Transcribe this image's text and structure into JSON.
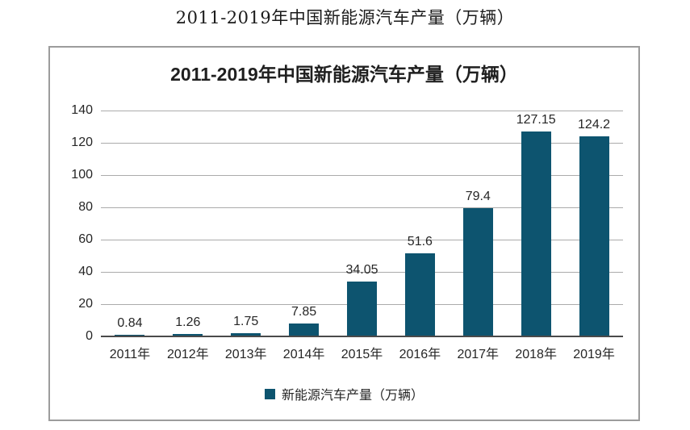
{
  "page_title": "2011-2019年中国新能源汽车产量（万辆）",
  "chart_data": {
    "type": "bar",
    "title": "2011-2019年中国新能源汽车产量（万辆）",
    "categories": [
      "2011年",
      "2012年",
      "2013年",
      "2014年",
      "2015年",
      "2016年",
      "2017年",
      "2018年",
      "2019年"
    ],
    "values": [
      0.84,
      1.26,
      1.75,
      7.85,
      34.05,
      51.6,
      79.4,
      127.15,
      124.2
    ],
    "value_labels": [
      "0.84",
      "1.26",
      "1.75",
      "7.85",
      "34.05",
      "51.6",
      "79.4",
      "127.15",
      "124.2"
    ],
    "xlabel": "",
    "ylabel": "",
    "ylim": [
      0,
      140
    ],
    "y_ticks": [
      0,
      20,
      40,
      60,
      80,
      100,
      120,
      140
    ],
    "grid": true,
    "legend": "新能源汽车产量（万辆）",
    "legend_position": "bottom",
    "colors": {
      "bar": "#0d546f",
      "gridline": "#ababab",
      "axis_line": "#4a4a4a",
      "text": "#262626"
    }
  }
}
